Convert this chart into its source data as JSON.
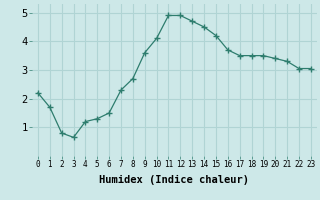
{
  "x": [
    0,
    1,
    2,
    3,
    4,
    5,
    6,
    7,
    8,
    9,
    10,
    11,
    12,
    13,
    14,
    15,
    16,
    17,
    18,
    19,
    20,
    21,
    22,
    23
  ],
  "y": [
    2.2,
    1.7,
    0.8,
    0.65,
    1.2,
    1.3,
    1.5,
    2.3,
    2.7,
    3.6,
    4.1,
    4.9,
    4.9,
    4.7,
    4.5,
    4.2,
    3.7,
    3.5,
    3.5,
    3.5,
    3.4,
    3.3,
    3.05,
    3.05
  ],
  "xlabel": "Humidex (Indice chaleur)",
  "ylim": [
    0,
    5.3
  ],
  "xlim": [
    -0.5,
    23.5
  ],
  "yticks": [
    1,
    2,
    3,
    4,
    5
  ],
  "xticks": [
    0,
    1,
    2,
    3,
    4,
    5,
    6,
    7,
    8,
    9,
    10,
    11,
    12,
    13,
    14,
    15,
    16,
    17,
    18,
    19,
    20,
    21,
    22,
    23
  ],
  "line_color": "#2e7d6e",
  "marker": "+",
  "marker_size": 4,
  "marker_edge_width": 1.0,
  "line_width": 0.9,
  "bg_color": "#cde8e8",
  "grid_color": "#b0d4d4",
  "xlabel_fontsize": 7.5,
  "xtick_fontsize": 5.5,
  "ytick_fontsize": 7.5
}
